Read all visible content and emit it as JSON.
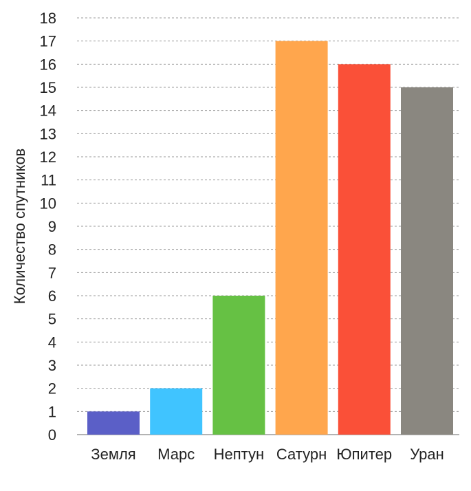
{
  "chart_data": {
    "type": "bar",
    "title": "",
    "xlabel": "",
    "ylabel": "Количество спутников",
    "ylim": [
      0,
      18
    ],
    "yticks": [
      0,
      1,
      2,
      3,
      4,
      5,
      6,
      7,
      8,
      9,
      10,
      11,
      12,
      13,
      14,
      15,
      16,
      17,
      18
    ],
    "grid": true,
    "legend": "none",
    "categories": [
      "Земля",
      "Марс",
      "Нептун",
      "Сатурн",
      "Юпитер",
      "Уран"
    ],
    "values": [
      1,
      2,
      6,
      17,
      16,
      15
    ],
    "colors": [
      "#5b5fc7",
      "#40c4ff",
      "#66c144",
      "#ffa64d",
      "#fa5038",
      "#8a8780"
    ]
  }
}
